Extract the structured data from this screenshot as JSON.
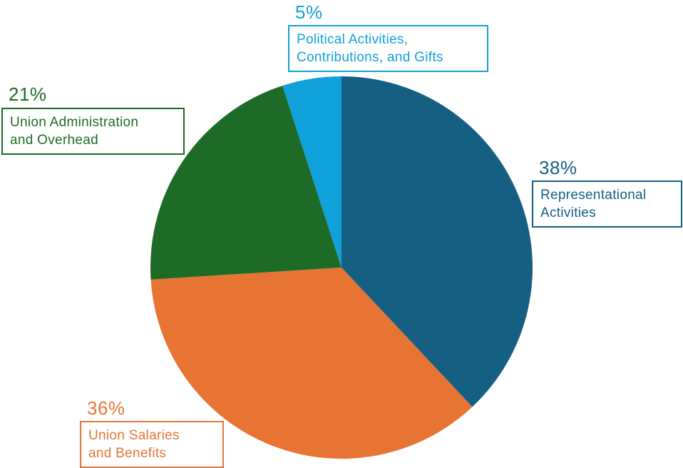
{
  "chart_data": {
    "type": "pie",
    "slices": [
      {
        "label": "Representational\nActivities",
        "value": 38,
        "display": "38%",
        "color": "#155F82"
      },
      {
        "label": "Union Salaries\nand Benefits",
        "value": 36,
        "display": "36%",
        "color": "#E87433"
      },
      {
        "label": "Union Administration\nand Overhead",
        "value": 21,
        "display": "21%",
        "color": "#1D6B27"
      },
      {
        "label": "Political Activities,\nContributions, and Gifts",
        "value": 5,
        "display": "5%",
        "color": "#11A1DA"
      }
    ],
    "start_angle_deg": 0,
    "direction": "clockwise",
    "legend": "callout boxes beside each slice"
  }
}
